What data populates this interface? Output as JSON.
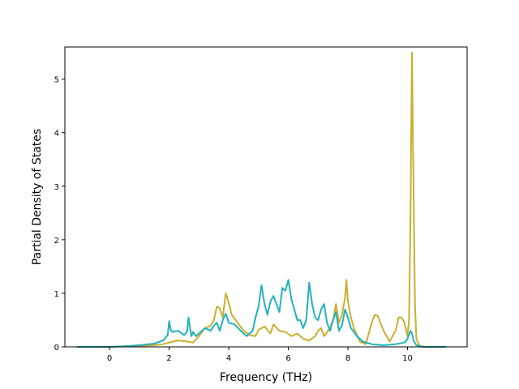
{
  "chart_data": {
    "type": "line",
    "title": "",
    "xlabel": "Frequency (THz)",
    "ylabel": "Partial Density of States",
    "xlim": [
      -1.5,
      12.0
    ],
    "ylim": [
      0,
      5.6
    ],
    "xticks": [
      0,
      2,
      4,
      6,
      8,
      10
    ],
    "yticks": [
      0,
      1,
      2,
      3,
      4,
      5
    ],
    "grid": false,
    "legend": "none",
    "series": [
      {
        "color": "#c8b02e",
        "x": [
          -1.1,
          0.0,
          0.5,
          1.0,
          1.5,
          1.8,
          2.0,
          2.3,
          2.6,
          2.8,
          3.0,
          3.2,
          3.4,
          3.5,
          3.6,
          3.7,
          3.8,
          3.9,
          4.0,
          4.1,
          4.3,
          4.5,
          4.7,
          4.9,
          5.0,
          5.2,
          5.4,
          5.5,
          5.7,
          5.9,
          6.1,
          6.3,
          6.5,
          6.7,
          6.9,
          7.0,
          7.1,
          7.2,
          7.4,
          7.5,
          7.6,
          7.7,
          7.8,
          7.9,
          7.95,
          8.0,
          8.1,
          8.2,
          8.4,
          8.6,
          8.8,
          8.9,
          9.0,
          9.2,
          9.4,
          9.6,
          9.7,
          9.8,
          9.9,
          10.0,
          10.05,
          10.1,
          10.15,
          10.2,
          10.25,
          10.3,
          10.4,
          10.6,
          11.3
        ],
        "values": [
          0.0,
          0.0,
          0.01,
          0.02,
          0.03,
          0.05,
          0.08,
          0.12,
          0.1,
          0.08,
          0.2,
          0.35,
          0.4,
          0.5,
          0.75,
          0.72,
          0.55,
          1.0,
          0.82,
          0.6,
          0.45,
          0.3,
          0.22,
          0.2,
          0.32,
          0.38,
          0.25,
          0.42,
          0.3,
          0.28,
          0.2,
          0.25,
          0.15,
          0.12,
          0.2,
          0.3,
          0.35,
          0.2,
          0.35,
          0.5,
          0.8,
          0.45,
          0.6,
          0.9,
          1.25,
          0.85,
          0.55,
          0.35,
          0.1,
          0.05,
          0.45,
          0.6,
          0.58,
          0.3,
          0.1,
          0.3,
          0.55,
          0.55,
          0.45,
          0.2,
          0.5,
          2.5,
          5.5,
          3.0,
          0.8,
          0.15,
          0.02,
          0.0,
          0.0
        ]
      },
      {
        "color": "#23b1bd",
        "x": [
          -1.1,
          0.0,
          0.5,
          1.0,
          1.5,
          1.8,
          1.95,
          2.0,
          2.05,
          2.1,
          2.3,
          2.5,
          2.6,
          2.65,
          2.7,
          2.75,
          2.8,
          2.9,
          3.0,
          3.2,
          3.4,
          3.5,
          3.6,
          3.7,
          3.8,
          3.9,
          4.0,
          4.2,
          4.4,
          4.6,
          4.8,
          4.9,
          5.0,
          5.1,
          5.2,
          5.3,
          5.4,
          5.5,
          5.6,
          5.7,
          5.8,
          5.9,
          6.0,
          6.1,
          6.2,
          6.3,
          6.4,
          6.5,
          6.6,
          6.7,
          6.8,
          6.9,
          7.0,
          7.1,
          7.2,
          7.3,
          7.4,
          7.5,
          7.6,
          7.7,
          7.8,
          7.9,
          8.0,
          8.1,
          8.2,
          8.3,
          8.5,
          8.8,
          9.2,
          9.6,
          9.9,
          10.0,
          10.1,
          10.15,
          10.2,
          10.3,
          10.5,
          11.3
        ],
        "values": [
          0.0,
          0.0,
          0.01,
          0.03,
          0.06,
          0.12,
          0.22,
          0.48,
          0.32,
          0.28,
          0.3,
          0.22,
          0.28,
          0.55,
          0.35,
          0.2,
          0.28,
          0.2,
          0.25,
          0.35,
          0.3,
          0.4,
          0.45,
          0.3,
          0.5,
          0.62,
          0.45,
          0.42,
          0.3,
          0.2,
          0.3,
          0.55,
          0.75,
          1.15,
          0.8,
          0.6,
          0.85,
          0.95,
          0.8,
          0.65,
          1.1,
          1.05,
          1.25,
          0.9,
          0.7,
          0.5,
          0.5,
          0.35,
          0.5,
          1.2,
          0.8,
          0.55,
          0.5,
          0.7,
          0.8,
          0.45,
          0.3,
          0.5,
          0.65,
          0.3,
          0.4,
          0.7,
          0.55,
          0.35,
          0.28,
          0.2,
          0.1,
          0.05,
          0.03,
          0.05,
          0.08,
          0.15,
          0.3,
          0.25,
          0.12,
          0.03,
          0.0,
          0.0
        ]
      }
    ]
  }
}
